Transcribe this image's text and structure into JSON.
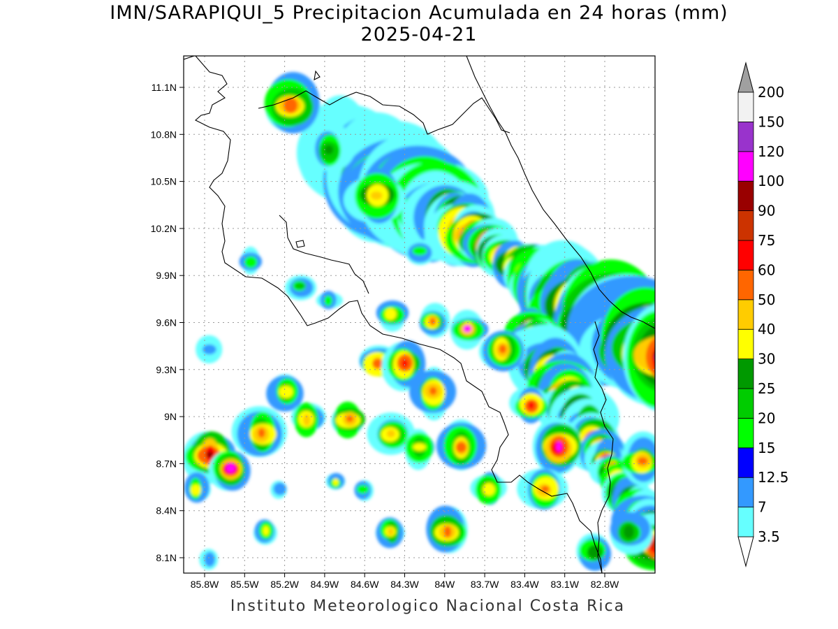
{
  "title": "IMN/SARAPIQUI_5 Precipitacion Acumulada en 24 horas (mm)",
  "date": "2025-04-21",
  "footer": "Instituto Meteorologico Nacional Costa Rica",
  "map": {
    "lon_range": [
      -86.0,
      -82.5
    ],
    "lat_range": [
      8.0,
      11.2
    ],
    "lon_ticks": [
      "85.8W",
      "85.5W",
      "85.2W",
      "84.9W",
      "84.6W",
      "84.3W",
      "84W",
      "83.7W",
      "83.4W",
      "83.1W",
      "82.8W"
    ],
    "lon_values": [
      -85.8,
      -85.5,
      -85.2,
      -84.9,
      -84.6,
      -84.3,
      -84.0,
      -83.7,
      -83.4,
      -83.1,
      -82.8
    ],
    "lat_ticks": [
      "11.1N",
      "10.8N",
      "10.5N",
      "10.2N",
      "9.9N",
      "9.6N",
      "9.3N",
      "9N",
      "8.7N",
      "8.4N",
      "8.1N"
    ],
    "lat_values": [
      11.1,
      10.8,
      10.5,
      10.2,
      9.9,
      9.6,
      9.3,
      9.0,
      8.7,
      8.4,
      8.1
    ],
    "grid": true
  },
  "legend": {
    "levels": [
      "3.5",
      "7",
      "12.5",
      "15",
      "20",
      "25",
      "30",
      "40",
      "50",
      "60",
      "75",
      "90",
      "100",
      "120",
      "150",
      "200"
    ],
    "colors": [
      "#66ffff",
      "#3399ff",
      "#0000ff",
      "#00ff00",
      "#00cc00",
      "#009900",
      "#ffff00",
      "#ffcc00",
      "#ff6600",
      "#ff0000",
      "#cc3300",
      "#990000",
      "#ff00ff",
      "#9933cc",
      "#f2f2f2",
      "#a0a0a0"
    ],
    "placement": "right"
  }
}
